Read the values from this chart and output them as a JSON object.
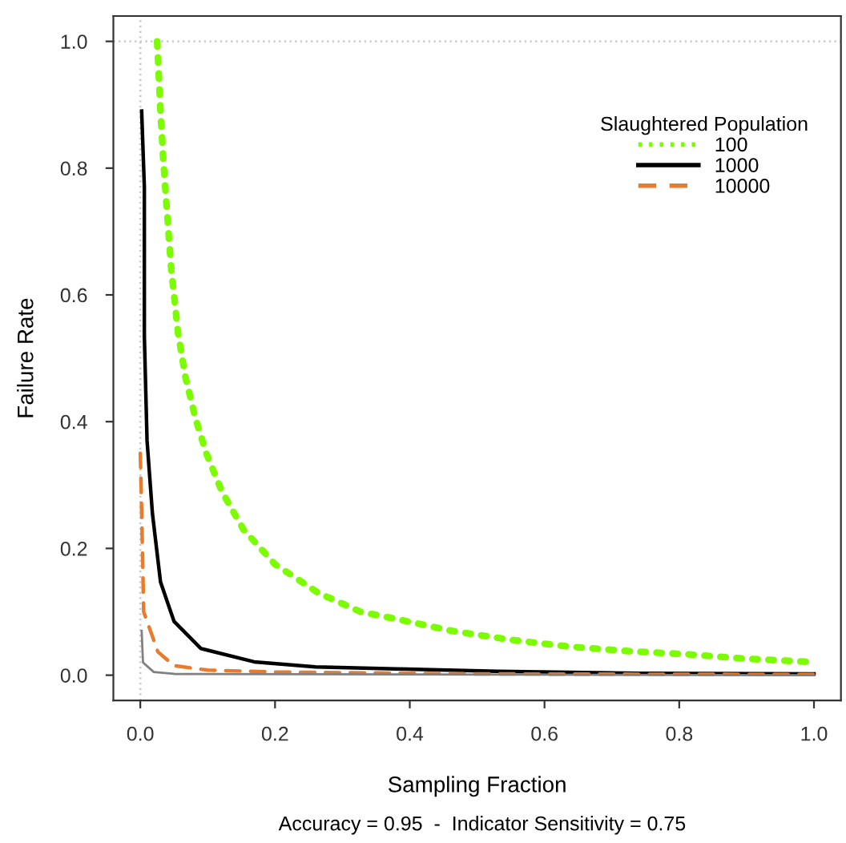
{
  "chart_data": {
    "type": "line",
    "xlabel": "Sampling Fraction",
    "ylabel": "Failure Rate",
    "annotations": [
      "Accuracy = 0.95  -  Indicator Sensitivity = 0.75"
    ],
    "legend_title": "Slaughtered Population",
    "legend": "top right",
    "xlim": [
      -0.04,
      1.04
    ],
    "ylim": [
      -0.04,
      1.04
    ],
    "xticks": [
      {
        "value": 0,
        "label": "0.0"
      },
      0.2,
      0.4,
      0.6,
      0.8,
      {
        "value": 1,
        "label": "1.0"
      }
    ],
    "yticks": [
      {
        "value": 0,
        "label": "0.0"
      },
      0.2,
      0.4,
      0.6,
      0.8,
      {
        "value": 1,
        "label": "1.0"
      }
    ],
    "grid": false,
    "marker": "none",
    "ref_lines": [
      {
        "axis": "y",
        "value": 1.0,
        "color": "#cccccc",
        "line_style": "dotted"
      },
      {
        "axis": "x",
        "value": 0.0,
        "color": "#cccccc",
        "line_style": "dotted"
      }
    ],
    "series": [
      {
        "name": "100",
        "color": "#7cfc00",
        "line_style": "dotted",
        "x": [
          0.025,
          0.03,
          0.034,
          0.039,
          0.046,
          0.056,
          0.067,
          0.082,
          0.098,
          0.121,
          0.153,
          0.2,
          0.264,
          0.327,
          0.383,
          0.462,
          0.549,
          0.637,
          0.724,
          0.811,
          0.898,
          0.993
        ],
        "values": [
          1.0,
          0.89,
          0.815,
          0.74,
          0.64,
          0.54,
          0.47,
          0.405,
          0.35,
          0.29,
          0.23,
          0.175,
          0.13,
          0.1,
          0.088,
          0.07,
          0.056,
          0.045,
          0.038,
          0.033,
          0.026,
          0.021
        ]
      },
      {
        "name": "1000",
        "color": "#000000",
        "line_style": "solid",
        "x": [
          0.002,
          0.006,
          0.006,
          0.01,
          0.018,
          0.03,
          0.05,
          0.09,
          0.169,
          0.26,
          0.38,
          0.53,
          0.74,
          1.0
        ],
        "values": [
          0.89,
          0.77,
          0.535,
          0.37,
          0.255,
          0.147,
          0.085,
          0.042,
          0.021,
          0.013,
          0.01,
          0.006,
          0.003,
          0.002
        ]
      },
      {
        "name": "10000",
        "color": "#e87b2c",
        "line_style": "dashed",
        "x": [
          0.0,
          0.002,
          0.005,
          0.026,
          0.05,
          0.1,
          0.2,
          0.5,
          1.0
        ],
        "values": [
          0.35,
          0.26,
          0.1,
          0.037,
          0.015,
          0.008,
          0.005,
          0.002,
          0.001
        ]
      },
      {
        "color": "#808080",
        "line_style": "solid",
        "x": [
          0.002,
          0.004,
          0.02,
          0.05,
          1.0
        ],
        "values": [
          0.07,
          0.02,
          0.005,
          0.002,
          0.0
        ]
      }
    ]
  }
}
